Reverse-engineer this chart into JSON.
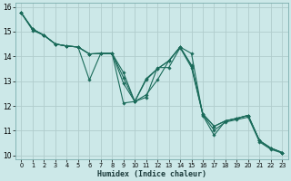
{
  "title": "",
  "xlabel": "Humidex (Indice chaleur)",
  "background_color": "#cce8e8",
  "grid_color": "#b0cccc",
  "line_color": "#1a6b5a",
  "xlim": [
    -0.5,
    23.5
  ],
  "ylim": [
    9.85,
    16.15
  ],
  "xticks": [
    0,
    1,
    2,
    3,
    4,
    5,
    6,
    7,
    8,
    9,
    10,
    11,
    12,
    13,
    14,
    15,
    16,
    17,
    18,
    19,
    20,
    21,
    22,
    23
  ],
  "yticks": [
    10,
    11,
    12,
    13,
    14,
    15,
    16
  ],
  "lines": [
    {
      "x": [
        0,
        1,
        2,
        3,
        4,
        5,
        6,
        7,
        8,
        9,
        10,
        11,
        12,
        13,
        14,
        15,
        16,
        17,
        18,
        19,
        20,
        21,
        22,
        23
      ],
      "y": [
        15.75,
        15.1,
        14.85,
        14.5,
        14.42,
        14.38,
        14.1,
        14.12,
        14.12,
        13.35,
        12.18,
        13.1,
        13.5,
        13.82,
        14.38,
        13.62,
        11.68,
        11.18,
        11.4,
        11.5,
        11.62,
        10.6,
        10.3,
        10.12
      ]
    },
    {
      "x": [
        0,
        1,
        2,
        3,
        4,
        5,
        6,
        7,
        8,
        9,
        10,
        11,
        12,
        13,
        14,
        15,
        16,
        17,
        18,
        19,
        20,
        21,
        22,
        23
      ],
      "y": [
        15.75,
        15.1,
        14.85,
        14.5,
        14.42,
        14.38,
        14.1,
        14.12,
        14.12,
        12.92,
        12.18,
        12.45,
        13.05,
        13.82,
        14.38,
        14.12,
        11.62,
        10.82,
        11.4,
        11.5,
        11.62,
        10.6,
        10.3,
        10.12
      ]
    },
    {
      "x": [
        0,
        1,
        2,
        3,
        4,
        5,
        6,
        7,
        8,
        9,
        10,
        11,
        12,
        13,
        14,
        15,
        16,
        17,
        18,
        19,
        20,
        21,
        22,
        23
      ],
      "y": [
        15.75,
        15.05,
        14.85,
        14.5,
        14.42,
        14.38,
        14.1,
        14.12,
        14.12,
        13.15,
        12.18,
        13.05,
        13.5,
        13.82,
        14.38,
        13.65,
        11.68,
        11.18,
        11.4,
        11.5,
        11.62,
        10.6,
        10.3,
        10.12
      ]
    },
    {
      "x": [
        0,
        1,
        2,
        3,
        4,
        5,
        6,
        7,
        8,
        9,
        10,
        11,
        12,
        13,
        14,
        15,
        16,
        17,
        18,
        19,
        20,
        21,
        22,
        23
      ],
      "y": [
        15.75,
        15.1,
        14.85,
        14.5,
        14.42,
        14.38,
        13.05,
        14.12,
        14.12,
        12.12,
        12.18,
        12.35,
        13.55,
        13.55,
        14.35,
        13.55,
        11.65,
        11.02,
        11.35,
        11.45,
        11.55,
        10.55,
        10.25,
        10.1
      ]
    }
  ]
}
